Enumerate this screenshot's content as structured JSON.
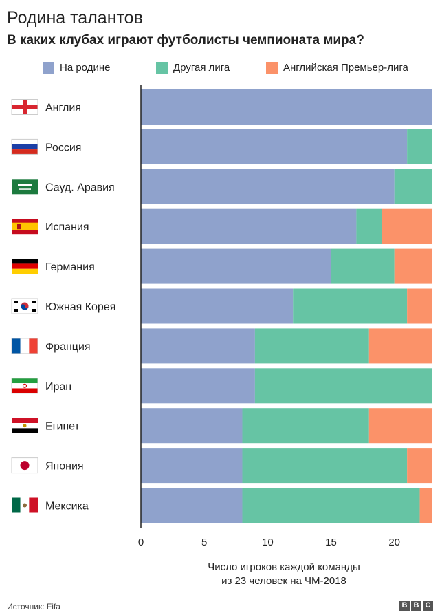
{
  "title": "Родина талантов",
  "subtitle": "В каких клубах играют футболисты чемпионата мира?",
  "source": "Источник: Fifa",
  "logo": [
    "B",
    "B",
    "C"
  ],
  "chart_data": {
    "type": "bar",
    "orientation": "horizontal",
    "stacked": true,
    "categories": [
      "Англия",
      "Россия",
      "Сауд. Аравия",
      "Испания",
      "Германия",
      "Южная Корея",
      "Франция",
      "Иран",
      "Египет",
      "Япония",
      "Мексика"
    ],
    "flags": [
      "flag-england-icon",
      "flag-russia-icon",
      "flag-saudi-arabia-icon",
      "flag-spain-icon",
      "flag-germany-icon",
      "flag-south-korea-icon",
      "flag-france-icon",
      "flag-iran-icon",
      "flag-egypt-icon",
      "flag-japan-icon",
      "flag-mexico-icon"
    ],
    "series": [
      {
        "name": "На родине",
        "color": "#8fa2cc",
        "values": [
          23,
          21,
          20,
          17,
          15,
          12,
          9,
          9,
          8,
          8,
          8
        ]
      },
      {
        "name": "Другая лига",
        "color": "#66c4a4",
        "values": [
          0,
          2,
          3,
          2,
          5,
          9,
          9,
          14,
          10,
          13,
          14
        ]
      },
      {
        "name": "Английская Премьер-лига",
        "color": "#fb9269",
        "values": [
          0,
          0,
          0,
          4,
          3,
          2,
          5,
          0,
          5,
          2,
          1
        ]
      }
    ],
    "xlim": [
      0,
      23
    ],
    "xticks": [
      0,
      5,
      10,
      15,
      20
    ],
    "xlabel": [
      "Число игроков каждой команды",
      "из 23 человек на ЧМ-2018"
    ],
    "legend_position": "top",
    "grid": false
  }
}
